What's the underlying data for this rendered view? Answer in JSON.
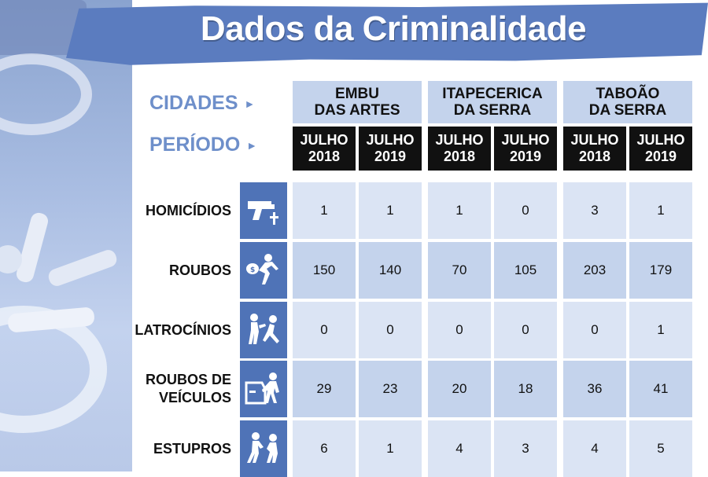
{
  "title": "Dados da Criminalidade",
  "header": {
    "cidades_label": "CIDADES",
    "periodo_label": "PERÍODO",
    "arrow": "►"
  },
  "colors": {
    "accent_blue": "#5b7cbf",
    "label_blue": "#6e8fca",
    "cell_light": "#dbe4f4",
    "cell_dark": "#c4d3ec",
    "icon_blue": "#4f73b7"
  },
  "chart_data": {
    "type": "table",
    "title": "Dados da Criminalidade",
    "cities": [
      {
        "line1": "EMBU",
        "line2": "DAS ARTES"
      },
      {
        "line1": "ITAPECERICA",
        "line2": "DA SERRA"
      },
      {
        "line1": "TABOÃO",
        "line2": "DA SERRA"
      }
    ],
    "periods": [
      {
        "month": "JULHO",
        "year": "2018"
      },
      {
        "month": "JULHO",
        "year": "2019"
      },
      {
        "month": "JULHO",
        "year": "2018"
      },
      {
        "month": "JULHO",
        "year": "2019"
      },
      {
        "month": "JULHO",
        "year": "2018"
      },
      {
        "month": "JULHO",
        "year": "2019"
      }
    ],
    "rows": [
      {
        "line1": "HOMICÍDIOS",
        "line2": "",
        "icon": "gun-icon",
        "values": [
          "1",
          "1",
          "1",
          "0",
          "3",
          "1"
        ]
      },
      {
        "line1": "ROUBOS",
        "line2": "",
        "icon": "robber-icon",
        "values": [
          "150",
          "140",
          "70",
          "105",
          "203",
          "179"
        ]
      },
      {
        "line1": "LATROCÍNIOS",
        "line2": "",
        "icon": "fight-icon",
        "values": [
          "0",
          "0",
          "0",
          "0",
          "0",
          "1"
        ]
      },
      {
        "line1": "ROUBOS DE",
        "line2": "VEÍCULOS",
        "icon": "car-theft-icon",
        "values": [
          "29",
          "23",
          "20",
          "18",
          "36",
          "41"
        ]
      },
      {
        "line1": "ESTUPROS",
        "line2": "",
        "icon": "assault-icon",
        "values": [
          "6",
          "1",
          "4",
          "3",
          "4",
          "5"
        ]
      }
    ]
  }
}
